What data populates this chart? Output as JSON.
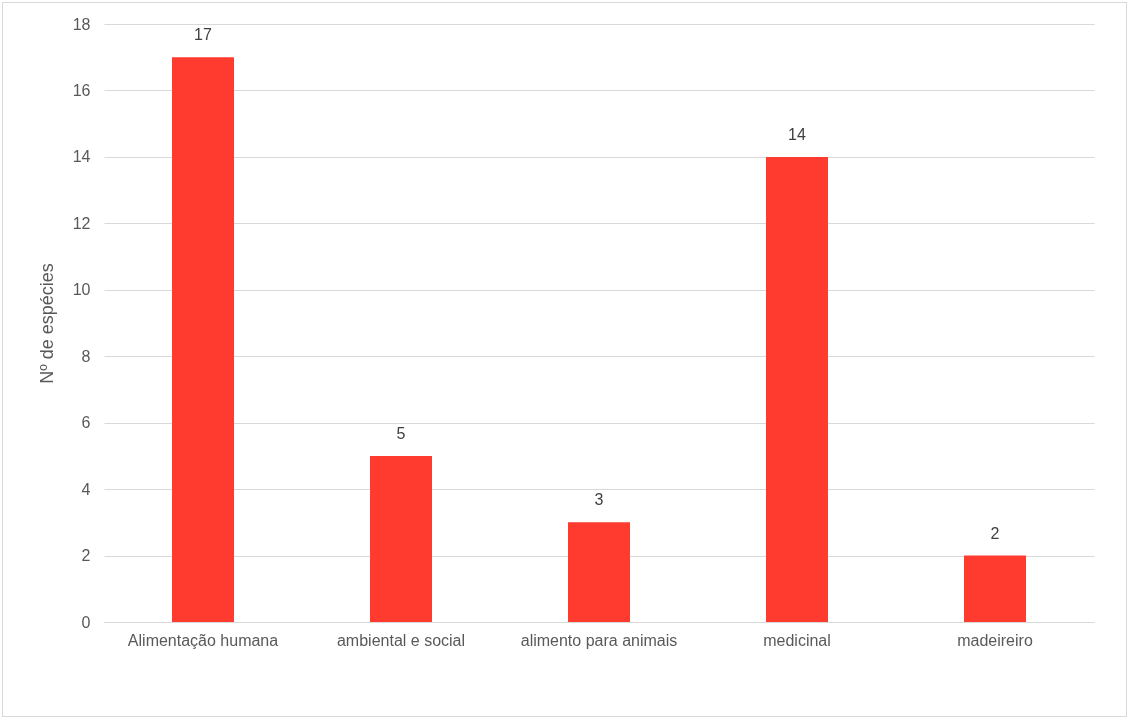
{
  "chart_data": {
    "type": "bar",
    "ylabel": "Nº de espécies",
    "categories": [
      "Alimentação humana",
      "ambiental e social",
      "alimento para animais",
      "medicinal",
      "madeireiro"
    ],
    "values": [
      17,
      5,
      3,
      14,
      2
    ],
    "color": "#ff3b30",
    "ylim": [
      0,
      18
    ],
    "yticks": [
      0,
      2,
      4,
      6,
      8,
      10,
      12,
      14,
      16,
      18
    ],
    "grid": "y",
    "data_labels": true
  }
}
